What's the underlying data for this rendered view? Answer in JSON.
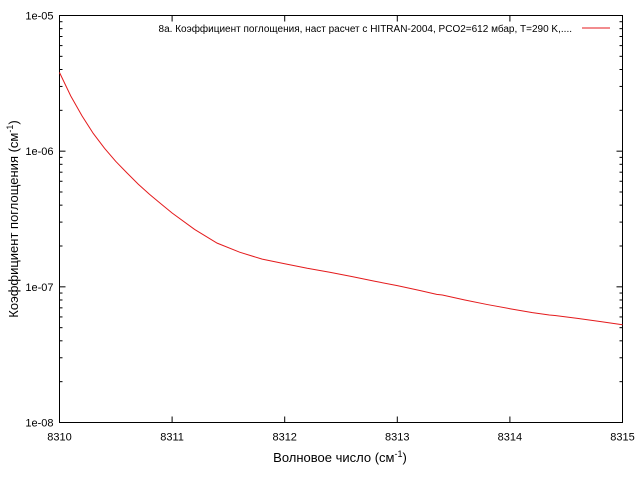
{
  "chart_data": {
    "type": "line",
    "title": "",
    "xlabel": "Волновое число (см",
    "xlabel_sup": "-1",
    "xlabel_tail": ")",
    "ylabel": "Коэффициент поглощения (см",
    "ylabel_sup": "-1",
    "ylabel_tail": ")",
    "xlim": [
      8310,
      8315
    ],
    "ylim": [
      1e-08,
      1e-05
    ],
    "yscale": "log",
    "grid": false,
    "legend_position": "top-right",
    "x_ticks": [
      8310,
      8311,
      8312,
      8313,
      8314,
      8315
    ],
    "x_tick_labels": [
      "8310",
      "8311",
      "8312",
      "8313",
      "8314",
      "8315"
    ],
    "y_ticks": [
      1e-08,
      1e-07,
      1e-06,
      1e-05
    ],
    "y_tick_labels": [
      "1e-08",
      "1e-07",
      "1e-06",
      "1e-05"
    ],
    "series": [
      {
        "name": "8а. Коэффициент поглощения, наст расчет с HITRAN-2004, PCO2=612 мбар, T=290 K,....",
        "color": "#e41a1c",
        "x": [
          8310.0,
          8310.1,
          8310.2,
          8310.3,
          8310.4,
          8310.5,
          8310.6,
          8310.7,
          8310.8,
          8310.9,
          8311.0,
          8311.2,
          8311.4,
          8311.6,
          8311.8,
          8312.0,
          8312.2,
          8312.4,
          8312.6,
          8312.8,
          8313.0,
          8313.2,
          8313.35,
          8313.4,
          8313.6,
          8313.8,
          8314.0,
          8314.2,
          8314.35,
          8314.4,
          8314.6,
          8314.8,
          8315.0
        ],
        "y": [
          3.8e-06,
          2.55e-06,
          1.82e-06,
          1.35e-06,
          1.05e-06,
          8.4e-07,
          6.9e-07,
          5.7e-07,
          4.8e-07,
          4.1e-07,
          3.5e-07,
          2.65e-07,
          2.1e-07,
          1.8e-07,
          1.6e-07,
          1.48e-07,
          1.37e-07,
          1.28e-07,
          1.19e-07,
          1.1e-07,
          1.02e-07,
          9.4e-08,
          8.8e-08,
          8.7e-08,
          8e-08,
          7.4e-08,
          6.9e-08,
          6.45e-08,
          6.2e-08,
          6.15e-08,
          5.85e-08,
          5.55e-08,
          5.25e-08
        ]
      }
    ]
  }
}
